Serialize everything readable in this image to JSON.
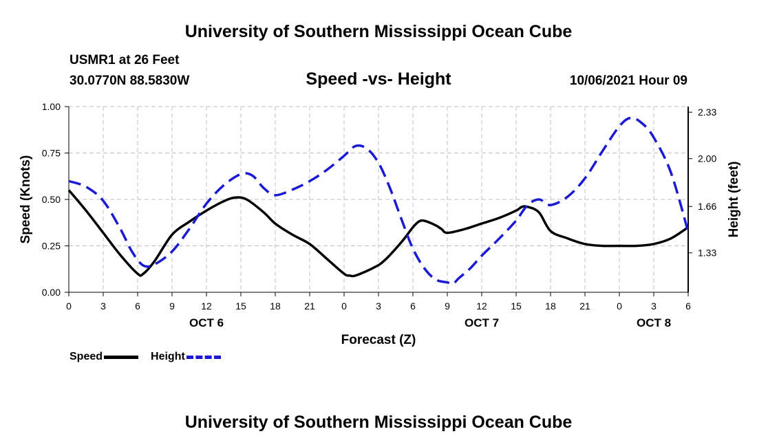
{
  "page": {
    "top_title": "University of Southern Mississippi Ocean Cube",
    "bottom_title": "University of Southern Mississippi Ocean Cube",
    "station": "USMR1 at 26 Feet",
    "coords": "30.0770N  88.5830W",
    "subtitle": "Speed -vs- Height",
    "date": "10/06/2021 Hour 09"
  },
  "colors": {
    "speed": "#000000",
    "height": "#1a1ad4",
    "grid": "#c0c0c0"
  },
  "legend": {
    "speed_label": "Speed",
    "height_label": "Height"
  },
  "chart_data": {
    "type": "line",
    "title": "Speed -vs- Height",
    "xlabel": "Forecast (Z)",
    "ylabel": "Speed (Knots)",
    "y2label": "Height (feet)",
    "xlim": [
      0,
      54
    ],
    "ylim": [
      0,
      1.0
    ],
    "y2lim": [
      1.05,
      2.37
    ],
    "grid": true,
    "x_ticks": [
      0,
      3,
      6,
      9,
      12,
      15,
      18,
      21,
      24,
      27,
      30,
      33,
      36,
      39,
      42,
      45,
      48,
      51,
      54
    ],
    "x_tick_labels": [
      "0",
      "3",
      "6",
      "9",
      "12",
      "15",
      "18",
      "21",
      "0",
      "3",
      "6",
      "9",
      "12",
      "15",
      "18",
      "21",
      "0",
      "3",
      "6"
    ],
    "y_ticks": [
      0,
      0.25,
      0.5,
      0.75,
      1.0
    ],
    "y_tick_labels": [
      "0.00",
      "0.25",
      "0.50",
      "0.75",
      "1.00"
    ],
    "y2_ticks": [
      1.33,
      1.66,
      2.0,
      2.33
    ],
    "y2_tick_labels": [
      "1.33",
      "1.66",
      "2.00",
      "2.33"
    ],
    "day_labels": [
      {
        "x": 12,
        "label": "OCT 6"
      },
      {
        "x": 36,
        "label": "OCT 7"
      },
      {
        "x": 51,
        "label": "OCT 8"
      }
    ],
    "series": [
      {
        "name": "Speed",
        "axis": "left",
        "style": "solid",
        "x": [
          0,
          1.5,
          3,
          4.5,
          6,
          6.5,
          7.5,
          9,
          10.5,
          12,
          13.5,
          14.5,
          15.5,
          17,
          18,
          19.5,
          21,
          22.5,
          24,
          24.5,
          25,
          26.5,
          27.5,
          29,
          30,
          30.5,
          31,
          32,
          32.5,
          33,
          34.5,
          36,
          37.5,
          39,
          39.5,
          40,
          41,
          42,
          43.5,
          45,
          46.5,
          48,
          49.5,
          51,
          52.5,
          54
        ],
        "values": [
          0.55,
          0.44,
          0.32,
          0.2,
          0.1,
          0.1,
          0.17,
          0.31,
          0.38,
          0.44,
          0.49,
          0.51,
          0.5,
          0.43,
          0.37,
          0.31,
          0.26,
          0.18,
          0.1,
          0.09,
          0.09,
          0.13,
          0.17,
          0.27,
          0.35,
          0.38,
          0.385,
          0.36,
          0.34,
          0.32,
          0.34,
          0.37,
          0.4,
          0.44,
          0.46,
          0.46,
          0.43,
          0.33,
          0.29,
          0.26,
          0.25,
          0.25,
          0.25,
          0.26,
          0.29,
          0.35
        ]
      },
      {
        "name": "Height",
        "axis": "right",
        "style": "dashed",
        "x": [
          0,
          1.5,
          3,
          4.5,
          5.5,
          6.5,
          7.5,
          9,
          10.5,
          12,
          13.5,
          15,
          16,
          17,
          18,
          19.5,
          21,
          22.5,
          24,
          25,
          26,
          27,
          28,
          29,
          30,
          31,
          32,
          33,
          33.5,
          34,
          35,
          36,
          37.5,
          39,
          40,
          41,
          42,
          43.5,
          45,
          46.5,
          48,
          49,
          50,
          51,
          52.5,
          54
        ],
        "values": [
          1.84,
          1.8,
          1.7,
          1.5,
          1.34,
          1.24,
          1.25,
          1.34,
          1.5,
          1.68,
          1.81,
          1.89,
          1.88,
          1.79,
          1.74,
          1.78,
          1.84,
          1.92,
          2.02,
          2.09,
          2.07,
          1.97,
          1.79,
          1.57,
          1.36,
          1.22,
          1.14,
          1.12,
          1.11,
          1.15,
          1.22,
          1.31,
          1.43,
          1.56,
          1.67,
          1.71,
          1.67,
          1.73,
          1.86,
          2.05,
          2.23,
          2.29,
          2.25,
          2.15,
          1.9,
          1.48
        ]
      }
    ]
  }
}
